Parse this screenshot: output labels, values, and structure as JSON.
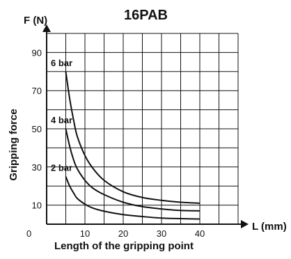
{
  "chart_data": {
    "type": "line",
    "title": "16PAB",
    "ylabel_top": "F (N)",
    "ylabel": "Gripping force",
    "xlabel_arrow": "L (mm)",
    "xlabel": "Length of the gripping point",
    "xlim": [
      0,
      50
    ],
    "ylim": [
      0,
      100
    ],
    "x_ticks": [
      0,
      10,
      20,
      30,
      40
    ],
    "y_ticks": [
      10,
      30,
      50,
      70,
      90
    ],
    "grid": true,
    "series": [
      {
        "name": "6 bar",
        "x": [
          5,
          6,
          7,
          8,
          10,
          12,
          15,
          20,
          25,
          30,
          35,
          40
        ],
        "y": [
          80,
          66,
          55,
          46,
          36,
          29.5,
          23,
          17,
          14,
          12.5,
          11.5,
          11
        ]
      },
      {
        "name": "4 bar",
        "x": [
          5,
          6,
          7,
          8,
          10,
          12,
          15,
          20,
          25,
          30,
          35,
          40
        ],
        "y": [
          50,
          41,
          34,
          29,
          23,
          19,
          15.5,
          11.5,
          9.2,
          8,
          7.2,
          7
        ]
      },
      {
        "name": "2 bar",
        "x": [
          5,
          6,
          7,
          8,
          10,
          12,
          15,
          20,
          25,
          30,
          35,
          40
        ],
        "y": [
          25,
          20,
          16.5,
          13.5,
          10.5,
          8.5,
          6.8,
          5,
          4,
          3.2,
          2.9,
          2.7
        ]
      }
    ]
  }
}
